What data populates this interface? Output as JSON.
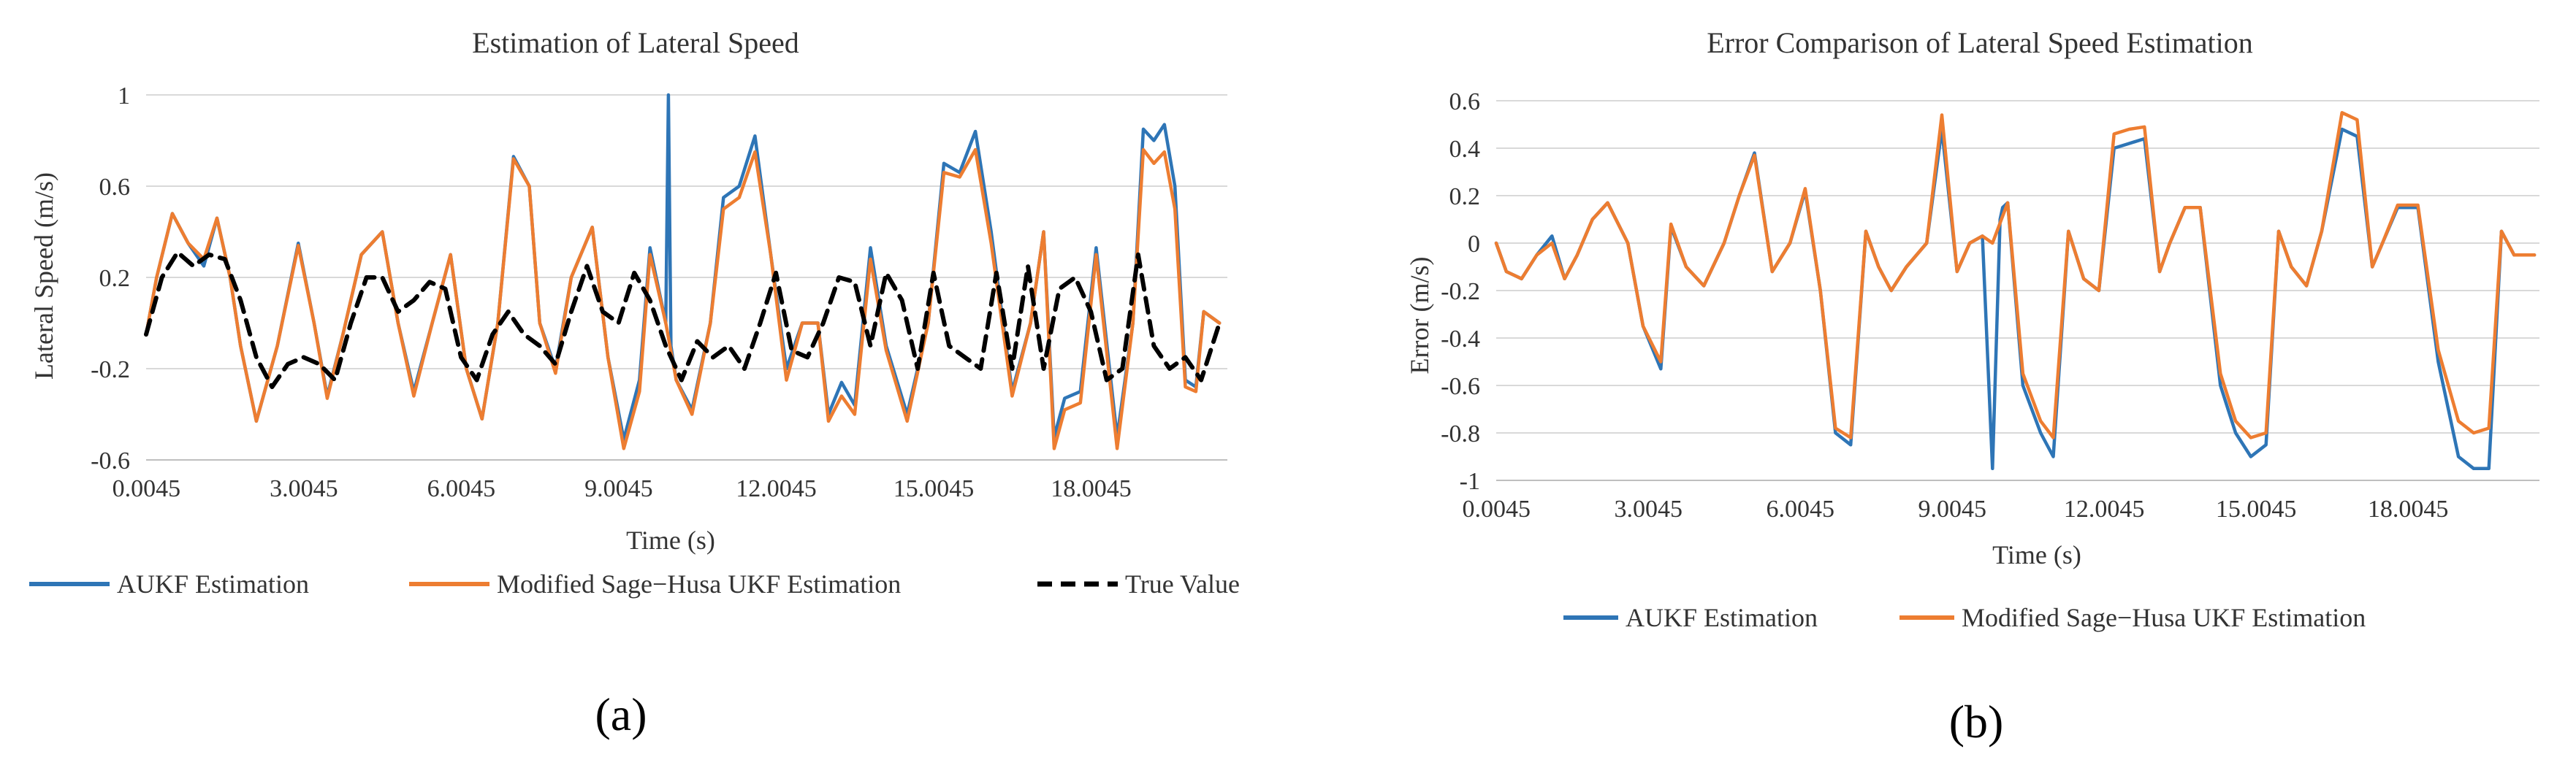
{
  "colors": {
    "aukf": "#2E75B6",
    "sage": "#ED7D31",
    "truth": "#000000",
    "grid": "#D9D9D9",
    "axis": "#BFBFBF"
  },
  "panels": {
    "a": {
      "label": "(a)"
    },
    "b": {
      "label": "(b)"
    }
  },
  "chart_data": [
    {
      "type": "line",
      "title": "Estimation of Lateral Speed",
      "xlabel": "Time (s)",
      "ylabel": "Lateral Speed (m/s)",
      "xlim": [
        0,
        20.6
      ],
      "ylim": [
        -0.6,
        1
      ],
      "xticks": [
        0.0045,
        3.0045,
        6.0045,
        9.0045,
        12.0045,
        15.0045,
        18.0045
      ],
      "xtick_labels": [
        "0.0045",
        "3.0045",
        "6.0045",
        "9.0045",
        "12.0045",
        "15.0045",
        "18.0045"
      ],
      "yticks": [
        -0.6,
        -0.2,
        0.2,
        0.6,
        1
      ],
      "ytick_labels": [
        "-0.6",
        "-0.2",
        "0.2",
        "0.6",
        "1"
      ],
      "legend": [
        "AUKF Estimation",
        "Modified Sage−Husa UKF Estimation",
        "True Value"
      ],
      "series": [
        {
          "name": "AUKF Estimation",
          "style": "solid",
          "x": [
            0.0,
            0.2,
            0.5,
            0.8,
            1.1,
            1.35,
            1.6,
            1.8,
            2.1,
            2.5,
            2.9,
            3.2,
            3.45,
            3.75,
            4.1,
            4.5,
            4.8,
            5.1,
            5.45,
            5.8,
            6.1,
            6.4,
            6.7,
            7.0,
            7.3,
            7.5,
            7.8,
            8.1,
            8.5,
            8.8,
            9.1,
            9.4,
            9.6,
            9.9,
            9.95,
            10.0,
            10.1,
            10.4,
            10.75,
            11.0,
            11.3,
            11.6,
            11.9,
            12.2,
            12.5,
            12.8,
            13.0,
            13.25,
            13.5,
            13.8,
            14.1,
            14.5,
            14.9,
            15.2,
            15.5,
            15.8,
            16.1,
            16.5,
            16.85,
            17.1,
            17.3,
            17.5,
            17.8,
            18.1,
            18.5,
            18.8,
            19.0,
            19.2,
            19.4,
            19.6,
            19.8,
            20.0,
            20.15,
            20.45
          ],
          "y": [
            -0.05,
            0.2,
            0.48,
            0.35,
            0.25,
            0.46,
            0.2,
            -0.1,
            -0.43,
            -0.1,
            0.35,
            0.0,
            -0.32,
            -0.05,
            0.3,
            0.4,
            0.0,
            -0.3,
            0.0,
            0.3,
            -0.2,
            -0.42,
            0.0,
            0.73,
            0.6,
            0.0,
            -0.2,
            0.2,
            0.42,
            -0.15,
            -0.51,
            -0.25,
            0.33,
            0.0,
            1.0,
            -0.1,
            -0.25,
            -0.38,
            0.0,
            0.55,
            0.6,
            0.82,
            0.3,
            -0.2,
            0.0,
            0.0,
            -0.4,
            -0.26,
            -0.36,
            0.33,
            -0.1,
            -0.4,
            0.0,
            0.7,
            0.66,
            0.84,
            0.4,
            -0.3,
            0.0,
            0.4,
            -0.5,
            -0.33,
            -0.3,
            0.33,
            -0.5,
            0.0,
            0.85,
            0.8,
            0.87,
            0.6,
            -0.25,
            -0.28,
            0.05,
            0.0
          ]
        },
        {
          "name": "Modified Sage−Husa UKF Estimation",
          "style": "solid",
          "x": [
            0.0,
            0.2,
            0.5,
            0.8,
            1.1,
            1.35,
            1.6,
            1.8,
            2.1,
            2.5,
            2.9,
            3.2,
            3.45,
            3.75,
            4.1,
            4.5,
            4.8,
            5.1,
            5.45,
            5.8,
            6.1,
            6.4,
            6.7,
            7.0,
            7.3,
            7.5,
            7.8,
            8.1,
            8.5,
            8.8,
            9.1,
            9.4,
            9.6,
            9.9,
            10.1,
            10.4,
            10.75,
            11.0,
            11.3,
            11.6,
            11.9,
            12.2,
            12.5,
            12.8,
            13.0,
            13.25,
            13.5,
            13.8,
            14.1,
            14.5,
            14.9,
            15.2,
            15.5,
            15.8,
            16.1,
            16.5,
            16.85,
            17.1,
            17.3,
            17.5,
            17.8,
            18.1,
            18.5,
            18.8,
            19.0,
            19.2,
            19.4,
            19.6,
            19.8,
            20.0,
            20.15,
            20.45
          ],
          "y": [
            -0.05,
            0.2,
            0.48,
            0.35,
            0.28,
            0.46,
            0.2,
            -0.1,
            -0.43,
            -0.1,
            0.34,
            0.0,
            -0.33,
            -0.05,
            0.3,
            0.4,
            0.0,
            -0.32,
            0.0,
            0.3,
            -0.2,
            -0.42,
            0.0,
            0.72,
            0.6,
            0.0,
            -0.22,
            0.2,
            0.42,
            -0.15,
            -0.55,
            -0.3,
            0.3,
            0.0,
            -0.25,
            -0.4,
            0.0,
            0.5,
            0.55,
            0.75,
            0.3,
            -0.25,
            0.0,
            0.0,
            -0.43,
            -0.32,
            -0.4,
            0.28,
            -0.12,
            -0.43,
            0.0,
            0.66,
            0.64,
            0.76,
            0.35,
            -0.32,
            0.0,
            0.4,
            -0.55,
            -0.38,
            -0.35,
            0.3,
            -0.55,
            0.0,
            0.76,
            0.7,
            0.75,
            0.5,
            -0.28,
            -0.3,
            0.05,
            0.0
          ]
        },
        {
          "name": "True Value",
          "style": "dashed",
          "x": [
            0.0,
            0.3,
            0.6,
            0.9,
            1.2,
            1.5,
            1.8,
            2.1,
            2.4,
            2.7,
            3.0,
            3.3,
            3.6,
            3.9,
            4.2,
            4.5,
            4.8,
            5.1,
            5.4,
            5.7,
            6.0,
            6.3,
            6.6,
            6.9,
            7.2,
            7.5,
            7.8,
            8.1,
            8.4,
            8.7,
            9.0,
            9.3,
            9.6,
            9.9,
            10.2,
            10.5,
            10.8,
            11.1,
            11.4,
            11.7,
            12.0,
            12.3,
            12.6,
            12.9,
            13.2,
            13.5,
            13.8,
            14.1,
            14.4,
            14.7,
            15.0,
            15.3,
            15.6,
            15.9,
            16.2,
            16.5,
            16.8,
            17.1,
            17.4,
            17.7,
            18.0,
            18.3,
            18.6,
            18.9,
            19.2,
            19.5,
            19.8,
            20.1,
            20.45
          ],
          "y": [
            -0.05,
            0.2,
            0.31,
            0.25,
            0.3,
            0.28,
            0.1,
            -0.15,
            -0.28,
            -0.18,
            -0.15,
            -0.18,
            -0.25,
            0.0,
            0.2,
            0.2,
            0.05,
            0.1,
            0.18,
            0.15,
            -0.15,
            -0.25,
            -0.05,
            0.05,
            -0.05,
            -0.1,
            -0.18,
            0.05,
            0.25,
            0.05,
            0.0,
            0.22,
            0.1,
            -0.1,
            -0.25,
            -0.08,
            -0.15,
            -0.1,
            -0.2,
            0.0,
            0.22,
            -0.12,
            -0.15,
            0.0,
            0.2,
            0.18,
            -0.1,
            0.22,
            0.1,
            -0.2,
            0.22,
            -0.1,
            -0.15,
            -0.2,
            0.22,
            -0.2,
            0.25,
            -0.2,
            0.15,
            0.2,
            0.05,
            -0.25,
            -0.2,
            0.3,
            -0.1,
            -0.2,
            -0.15,
            -0.25,
            0.0
          ]
        }
      ]
    },
    {
      "type": "line",
      "title": "Error Comparison of Lateral Speed Estimation",
      "xlabel": "Time (s)",
      "ylabel": "Error (m/s)",
      "xlim": [
        0,
        20.6
      ],
      "ylim": [
        -1,
        0.6
      ],
      "xticks": [
        0.0045,
        3.0045,
        6.0045,
        9.0045,
        12.0045,
        15.0045,
        18.0045
      ],
      "xtick_labels": [
        "0.0045",
        "3.0045",
        "6.0045",
        "9.0045",
        "12.0045",
        "15.0045",
        "18.0045"
      ],
      "yticks": [
        -1,
        -0.8,
        -0.6,
        -0.4,
        -0.2,
        0,
        0.2,
        0.4,
        0.6
      ],
      "ytick_labels": [
        "-1",
        "-0.8",
        "-0.6",
        "-0.4",
        "-0.2",
        "0",
        "0.2",
        "0.4",
        "0.6"
      ],
      "legend": [
        "AUKF Estimation",
        "Modified Sage−Husa UKF Estimation"
      ],
      "series": [
        {
          "name": "AUKF Estimation",
          "style": "solid",
          "x": [
            0.0,
            0.2,
            0.5,
            0.8,
            1.1,
            1.35,
            1.6,
            1.9,
            2.2,
            2.6,
            2.9,
            3.25,
            3.45,
            3.75,
            4.1,
            4.5,
            4.8,
            5.1,
            5.45,
            5.8,
            6.1,
            6.4,
            6.7,
            7.0,
            7.3,
            7.55,
            7.8,
            8.1,
            8.5,
            8.8,
            9.1,
            9.35,
            9.6,
            9.8,
            9.95,
            10.0,
            10.1,
            10.4,
            10.75,
            11.0,
            11.3,
            11.6,
            11.9,
            12.2,
            12.5,
            12.8,
            13.1,
            13.3,
            13.6,
            13.9,
            14.3,
            14.6,
            14.9,
            15.2,
            15.45,
            15.7,
            16.0,
            16.3,
            16.7,
            17.0,
            17.3,
            17.5,
            17.8,
            18.2,
            18.6,
            19.0,
            19.3,
            19.6,
            19.85,
            20.1,
            20.5
          ],
          "y": [
            0.0,
            -0.12,
            -0.15,
            -0.05,
            0.03,
            -0.15,
            -0.05,
            0.1,
            0.17,
            0.0,
            -0.35,
            -0.53,
            0.07,
            -0.1,
            -0.18,
            0.0,
            0.2,
            0.38,
            -0.12,
            0.0,
            0.22,
            -0.2,
            -0.8,
            -0.85,
            0.05,
            -0.1,
            -0.2,
            -0.1,
            0.0,
            0.48,
            -0.12,
            0.0,
            0.03,
            -0.95,
            0.1,
            0.15,
            0.17,
            -0.6,
            -0.8,
            -0.9,
            0.05,
            -0.15,
            -0.2,
            0.4,
            0.42,
            0.44,
            -0.12,
            0.0,
            0.15,
            0.15,
            -0.6,
            -0.8,
            -0.9,
            -0.85,
            0.05,
            -0.1,
            -0.18,
            0.05,
            0.48,
            0.45,
            -0.1,
            0.0,
            0.15,
            0.15,
            -0.5,
            -0.9,
            -0.95,
            -0.95,
            0.05,
            -0.05,
            -0.05
          ]
        },
        {
          "name": "Modified Sage−Husa UKF Estimation",
          "style": "solid",
          "x": [
            0.0,
            0.2,
            0.5,
            0.8,
            1.1,
            1.35,
            1.6,
            1.9,
            2.2,
            2.6,
            2.9,
            3.25,
            3.45,
            3.75,
            4.1,
            4.5,
            4.8,
            5.1,
            5.45,
            5.8,
            6.1,
            6.4,
            6.7,
            7.0,
            7.3,
            7.55,
            7.8,
            8.1,
            8.5,
            8.8,
            9.1,
            9.35,
            9.6,
            9.8,
            10.1,
            10.4,
            10.75,
            11.0,
            11.3,
            11.6,
            11.9,
            12.2,
            12.5,
            12.8,
            13.1,
            13.3,
            13.6,
            13.9,
            14.3,
            14.6,
            14.9,
            15.2,
            15.45,
            15.7,
            16.0,
            16.3,
            16.7,
            17.0,
            17.3,
            17.5,
            17.8,
            18.2,
            18.6,
            19.0,
            19.3,
            19.6,
            19.85,
            20.1,
            20.5
          ],
          "y": [
            0.0,
            -0.12,
            -0.15,
            -0.05,
            0.0,
            -0.15,
            -0.05,
            0.1,
            0.17,
            0.0,
            -0.35,
            -0.5,
            0.08,
            -0.1,
            -0.18,
            0.0,
            0.2,
            0.37,
            -0.12,
            0.0,
            0.23,
            -0.2,
            -0.78,
            -0.82,
            0.05,
            -0.1,
            -0.2,
            -0.1,
            0.0,
            0.54,
            -0.12,
            0.0,
            0.03,
            0.0,
            0.17,
            -0.55,
            -0.75,
            -0.82,
            0.05,
            -0.15,
            -0.2,
            0.46,
            0.48,
            0.49,
            -0.12,
            0.0,
            0.15,
            0.15,
            -0.55,
            -0.75,
            -0.82,
            -0.8,
            0.05,
            -0.1,
            -0.18,
            0.05,
            0.55,
            0.52,
            -0.1,
            0.0,
            0.16,
            0.16,
            -0.45,
            -0.75,
            -0.8,
            -0.78,
            0.05,
            -0.05,
            -0.05
          ]
        }
      ]
    }
  ]
}
